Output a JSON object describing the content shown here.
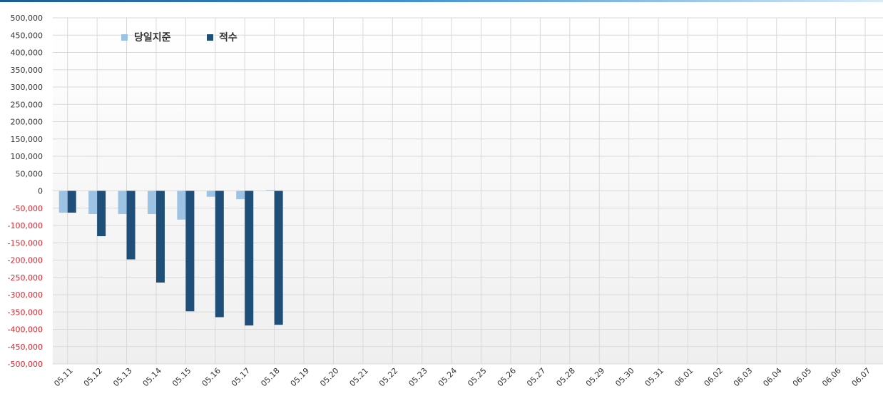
{
  "chart_data": {
    "type": "bar",
    "categories": [
      "05.11",
      "05.12",
      "05.13",
      "05.14",
      "05.15",
      "05.16",
      "05.17",
      "05.18",
      "05.19",
      "05.20",
      "05.21",
      "05.22",
      "05.23",
      "05.24",
      "05.25",
      "05.26",
      "05.27",
      "05.28",
      "05.29",
      "05.30",
      "05.31",
      "06.01",
      "06.02",
      "06.03",
      "06.04",
      "06.05",
      "06.06",
      "06.07"
    ],
    "series": [
      {
        "name": "당일지준",
        "color": "#9cc3e3",
        "values": [
          -63000,
          -67000,
          -67000,
          -67000,
          -83000,
          -17000,
          -24000,
          2000,
          null,
          null,
          null,
          null,
          null,
          null,
          null,
          null,
          null,
          null,
          null,
          null,
          null,
          null,
          null,
          null,
          null,
          null,
          null,
          null
        ]
      },
      {
        "name": "적수",
        "color": "#1f4e79",
        "values": [
          -63000,
          -131000,
          -198000,
          -265000,
          -348000,
          -365000,
          -389000,
          -387000,
          null,
          null,
          null,
          null,
          null,
          null,
          null,
          null,
          null,
          null,
          null,
          null,
          null,
          null,
          null,
          null,
          null,
          null,
          null,
          null
        ]
      }
    ],
    "ylim": [
      -500000,
      500000
    ],
    "ytick_step": 50000,
    "y_tick_labels": [
      "500,000",
      "450,000",
      "400,000",
      "350,000",
      "300,000",
      "250,000",
      "200,000",
      "150,000",
      "100,000",
      "50,000",
      "0",
      "-50,000",
      "-100,000",
      "-150,000",
      "-200,000",
      "-250,000",
      "-300,000",
      "-350,000",
      "-400,000",
      "-450,000",
      "-500,000"
    ],
    "negative_tick_color": "#e0202a",
    "positive_tick_color": "#333333",
    "grid": true,
    "legend": "top-left"
  }
}
